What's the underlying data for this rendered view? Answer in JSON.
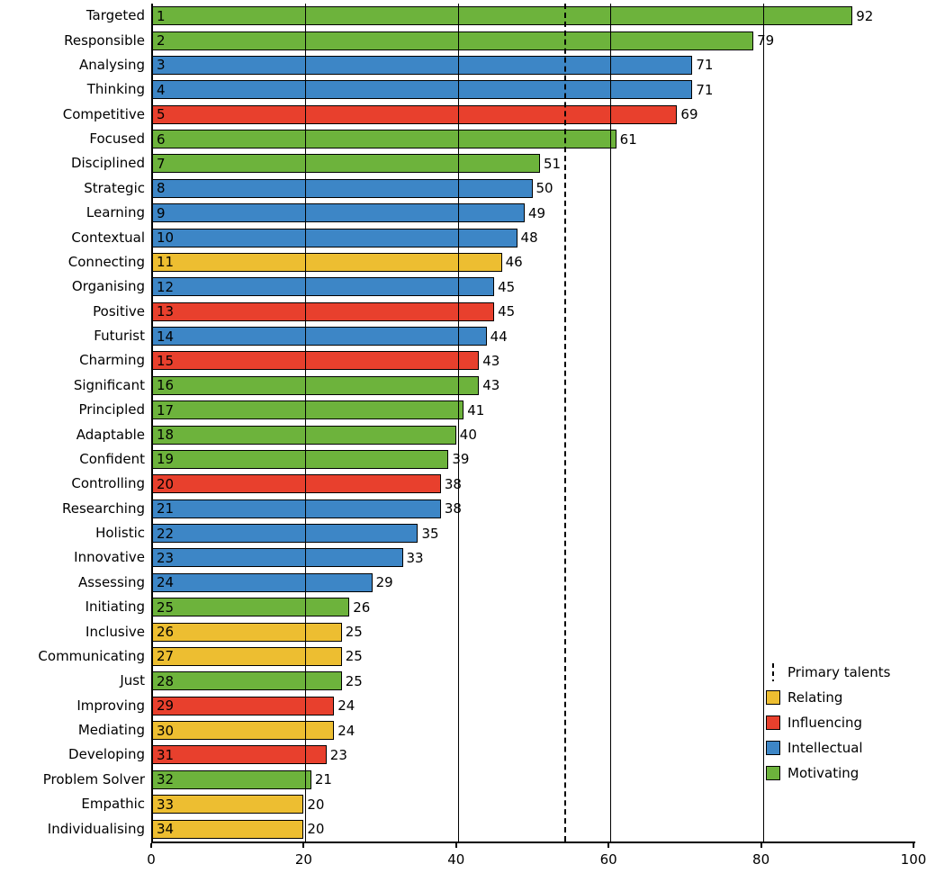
{
  "chart_data": {
    "type": "bar",
    "orientation": "horizontal",
    "title": "",
    "xlabel": "",
    "ylabel": "",
    "xlim": [
      0,
      100
    ],
    "x_ticks": [
      0,
      20,
      40,
      60,
      80,
      100
    ],
    "grid": "vertical lines at 20/40/60/80 drawn over bars",
    "threshold": {
      "value": 54,
      "label": "Primary talents",
      "style": "dashed"
    },
    "colors": {
      "Relating": "#edbe31",
      "Influencing": "#e8402d",
      "Intellectual": "#3d86c6",
      "Motivating": "#6db33c"
    },
    "legend_position": "lower right",
    "legend": [
      {
        "label": "Primary talents",
        "type": "dashed-line"
      },
      {
        "label": "Relating",
        "type": "swatch",
        "color": "#edbe31"
      },
      {
        "label": "Influencing",
        "type": "swatch",
        "color": "#e8402d"
      },
      {
        "label": "Intellectual",
        "type": "swatch",
        "color": "#3d86c6"
      },
      {
        "label": "Motivating",
        "type": "swatch",
        "color": "#6db33c"
      }
    ],
    "bars": [
      {
        "rank": 1,
        "label": "Targeted",
        "value": 92,
        "category": "Motivating"
      },
      {
        "rank": 2,
        "label": "Responsible",
        "value": 79,
        "category": "Motivating"
      },
      {
        "rank": 3,
        "label": "Analysing",
        "value": 71,
        "category": "Intellectual"
      },
      {
        "rank": 4,
        "label": "Thinking",
        "value": 71,
        "category": "Intellectual"
      },
      {
        "rank": 5,
        "label": "Competitive",
        "value": 69,
        "category": "Influencing"
      },
      {
        "rank": 6,
        "label": "Focused",
        "value": 61,
        "category": "Motivating"
      },
      {
        "rank": 7,
        "label": "Disciplined",
        "value": 51,
        "category": "Motivating"
      },
      {
        "rank": 8,
        "label": "Strategic",
        "value": 50,
        "category": "Intellectual"
      },
      {
        "rank": 9,
        "label": "Learning",
        "value": 49,
        "category": "Intellectual"
      },
      {
        "rank": 10,
        "label": "Contextual",
        "value": 48,
        "category": "Intellectual"
      },
      {
        "rank": 11,
        "label": "Connecting",
        "value": 46,
        "category": "Relating"
      },
      {
        "rank": 12,
        "label": "Organising",
        "value": 45,
        "category": "Intellectual"
      },
      {
        "rank": 13,
        "label": "Positive",
        "value": 45,
        "category": "Influencing"
      },
      {
        "rank": 14,
        "label": "Futurist",
        "value": 44,
        "category": "Intellectual"
      },
      {
        "rank": 15,
        "label": "Charming",
        "value": 43,
        "category": "Influencing"
      },
      {
        "rank": 16,
        "label": "Significant",
        "value": 43,
        "category": "Motivating"
      },
      {
        "rank": 17,
        "label": "Principled",
        "value": 41,
        "category": "Motivating"
      },
      {
        "rank": 18,
        "label": "Adaptable",
        "value": 40,
        "category": "Motivating"
      },
      {
        "rank": 19,
        "label": "Confident",
        "value": 39,
        "category": "Motivating"
      },
      {
        "rank": 20,
        "label": "Controlling",
        "value": 38,
        "category": "Influencing"
      },
      {
        "rank": 21,
        "label": "Researching",
        "value": 38,
        "category": "Intellectual"
      },
      {
        "rank": 22,
        "label": "Holistic",
        "value": 35,
        "category": "Intellectual"
      },
      {
        "rank": 23,
        "label": "Innovative",
        "value": 33,
        "category": "Intellectual"
      },
      {
        "rank": 24,
        "label": "Assessing",
        "value": 29,
        "category": "Intellectual"
      },
      {
        "rank": 25,
        "label": "Initiating",
        "value": 26,
        "category": "Motivating"
      },
      {
        "rank": 26,
        "label": "Inclusive",
        "value": 25,
        "category": "Relating"
      },
      {
        "rank": 27,
        "label": "Communicating",
        "value": 25,
        "category": "Relating"
      },
      {
        "rank": 28,
        "label": "Just",
        "value": 25,
        "category": "Motivating"
      },
      {
        "rank": 29,
        "label": "Improving",
        "value": 24,
        "category": "Influencing"
      },
      {
        "rank": 30,
        "label": "Mediating",
        "value": 24,
        "category": "Relating"
      },
      {
        "rank": 31,
        "label": "Developing",
        "value": 23,
        "category": "Influencing"
      },
      {
        "rank": 32,
        "label": "Problem Solver",
        "value": 21,
        "category": "Motivating"
      },
      {
        "rank": 33,
        "label": "Empathic",
        "value": 20,
        "category": "Relating"
      },
      {
        "rank": 34,
        "label": "Individualising",
        "value": 20,
        "category": "Relating"
      }
    ]
  }
}
